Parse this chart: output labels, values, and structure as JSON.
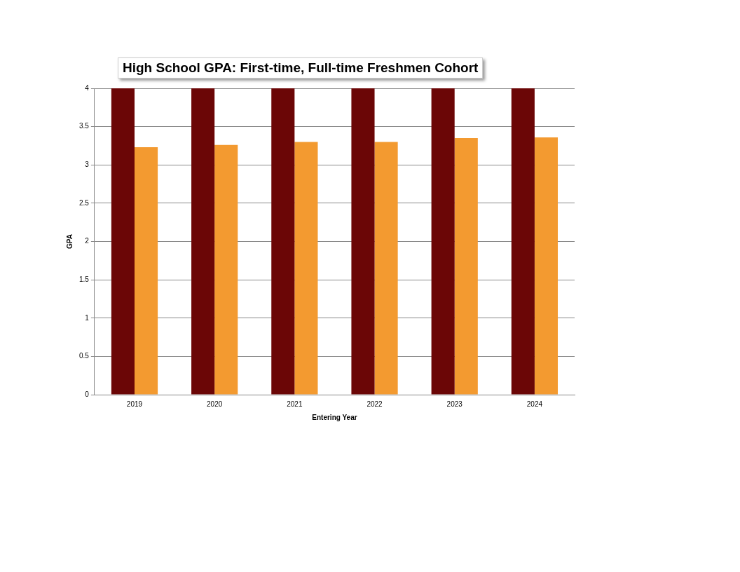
{
  "chart_data": {
    "type": "bar",
    "title": "High School GPA: First-time, Full-time Freshmen Cohort",
    "xlabel": "Entering Year",
    "ylabel": "GPA",
    "categories": [
      "2019",
      "2020",
      "2021",
      "2022",
      "2023",
      "2024"
    ],
    "series": [
      {
        "color": "#6b0606",
        "values": [
          4,
          4,
          4,
          4,
          4,
          4
        ]
      },
      {
        "color": "#f39a30",
        "values": [
          3.23,
          3.26,
          3.3,
          3.3,
          3.35,
          3.36
        ]
      }
    ],
    "ylim": [
      0,
      4
    ],
    "yticks": [
      0,
      0.5,
      1,
      1.5,
      2,
      2.5,
      3,
      3.5,
      4
    ],
    "grid": "y",
    "legend": false
  }
}
